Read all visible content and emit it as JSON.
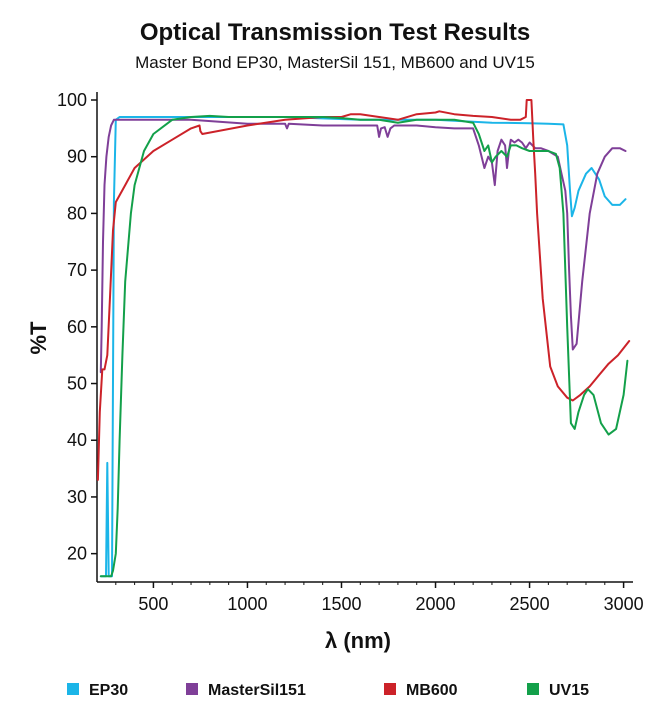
{
  "chart_data": {
    "type": "line",
    "title": "Optical Transmission Test Results",
    "subtitle": "Master Bond EP30, MasterSil 151, MB600 and UV15",
    "xlabel": "λ (nm)",
    "ylabel": "%T",
    "xlim": [
      200,
      3050
    ],
    "ylim": [
      15,
      100
    ],
    "x_ticks": [
      500,
      1000,
      1500,
      2000,
      2500,
      3000
    ],
    "y_ticks": [
      20,
      30,
      40,
      50,
      60,
      70,
      80,
      90,
      100
    ],
    "x_tick_labels": [
      "500",
      "1000",
      "1500",
      "2000",
      "2500",
      "3000"
    ],
    "y_tick_labels": [
      "20",
      "30",
      "40",
      "50",
      "60",
      "70",
      "80",
      "90",
      "100"
    ],
    "grid": false,
    "legend_position": "bottom",
    "series": [
      {
        "name": "EP30",
        "color": "#1bb5e8",
        "x": [
          220,
          248,
          255,
          262,
          270,
          280,
          290,
          300,
          320,
          400,
          800,
          1200,
          1600,
          2000,
          2300,
          2500,
          2600,
          2680,
          2700,
          2715,
          2725,
          2740,
          2760,
          2800,
          2830,
          2870,
          2900,
          2940,
          2980,
          3010
        ],
        "y": [
          16,
          16,
          36,
          16,
          16,
          16,
          82,
          96.5,
          97,
          97,
          97,
          97,
          96.5,
          96.5,
          96,
          95.9,
          95.8,
          95.7,
          92,
          84,
          79.5,
          81,
          84,
          87,
          88,
          86,
          83,
          81.5,
          81.5,
          82.5
        ]
      },
      {
        "name": "MasterSil151",
        "color": "#7f3f98",
        "x": [
          220,
          225,
          232,
          240,
          250,
          262,
          275,
          290,
          300,
          320,
          400,
          700,
          1000,
          1100,
          1200,
          1210,
          1220,
          1400,
          1600,
          1690,
          1700,
          1710,
          1730,
          1745,
          1760,
          1780,
          1900,
          2000,
          2100,
          2200,
          2230,
          2260,
          2280,
          2300,
          2315,
          2330,
          2350,
          2370,
          2380,
          2390,
          2400,
          2420,
          2440,
          2460,
          2480,
          2500,
          2530,
          2560,
          2600,
          2650,
          2670,
          2690,
          2700,
          2710,
          2720,
          2730,
          2750,
          2780,
          2820,
          2860,
          2900,
          2940,
          2980,
          3010
        ],
        "y": [
          52,
          60,
          75,
          85,
          90,
          93.5,
          95.5,
          96.5,
          96.5,
          96.5,
          96.5,
          96.5,
          95.8,
          95.8,
          95.8,
          95,
          95.8,
          95.5,
          95.5,
          95.5,
          93.5,
          95,
          95.2,
          93.5,
          95,
          95.5,
          95.5,
          95.2,
          95,
          95,
          92,
          88,
          90,
          89,
          85,
          91,
          93,
          92,
          88,
          91,
          93,
          92.5,
          93,
          92.5,
          91.5,
          92.5,
          91.5,
          91.5,
          91,
          90,
          87,
          84,
          80,
          70,
          62,
          56,
          57,
          68,
          80,
          87,
          90,
          91.5,
          91.5,
          91
        ]
      },
      {
        "name": "MB600",
        "color": "#cc2229",
        "x": [
          205,
          215,
          228,
          240,
          255,
          270,
          285,
          300,
          350,
          400,
          500,
          600,
          700,
          745,
          750,
          760,
          1000,
          1200,
          1400,
          1500,
          1550,
          1600,
          1700,
          1800,
          1900,
          2000,
          2020,
          2100,
          2200,
          2300,
          2400,
          2450,
          2480,
          2485,
          2500,
          2510,
          2520,
          2530,
          2540,
          2570,
          2610,
          2650,
          2700,
          2730,
          2770,
          2820,
          2870,
          2920,
          2970,
          3030
        ],
        "y": [
          33,
          45,
          52.5,
          52.5,
          55,
          66,
          77,
          82,
          85,
          88,
          91,
          93,
          95,
          95.5,
          94.5,
          94,
          95.5,
          96.5,
          97,
          97,
          97.5,
          97.5,
          97,
          96.5,
          97.5,
          97.8,
          98,
          97.5,
          97.2,
          97,
          96.5,
          96.5,
          97,
          100,
          100,
          100,
          93,
          87,
          80,
          65,
          53,
          49.5,
          47.5,
          47,
          48,
          49.5,
          51.5,
          53.5,
          55,
          57.5
        ]
      },
      {
        "name": "UV15",
        "color": "#13a04a",
        "x": [
          220,
          275,
          285,
          300,
          310,
          320,
          335,
          350,
          380,
          400,
          450,
          500,
          600,
          700,
          800,
          900,
          1000,
          1100,
          1200,
          1300,
          1400,
          1500,
          1600,
          1700,
          1800,
          1900,
          2000,
          2100,
          2200,
          2230,
          2260,
          2280,
          2300,
          2320,
          2350,
          2380,
          2400,
          2430,
          2460,
          2500,
          2550,
          2600,
          2640,
          2660,
          2680,
          2700,
          2720,
          2740,
          2760,
          2790,
          2810,
          2840,
          2880,
          2920,
          2960,
          3000,
          3020
        ],
        "y": [
          16,
          16,
          17,
          20,
          28,
          40,
          55,
          68,
          80,
          85,
          91,
          94,
          96.5,
          97,
          97.2,
          97,
          97,
          97,
          97,
          97,
          97,
          96.8,
          96.5,
          96.5,
          96,
          96.5,
          96.5,
          96.5,
          96,
          94,
          91,
          92,
          89,
          90,
          91,
          90,
          92,
          92,
          91.5,
          91,
          91,
          91,
          90.5,
          88,
          80,
          60,
          43,
          42,
          45,
          48,
          49,
          48,
          43,
          41,
          42,
          48,
          54
        ]
      }
    ]
  }
}
